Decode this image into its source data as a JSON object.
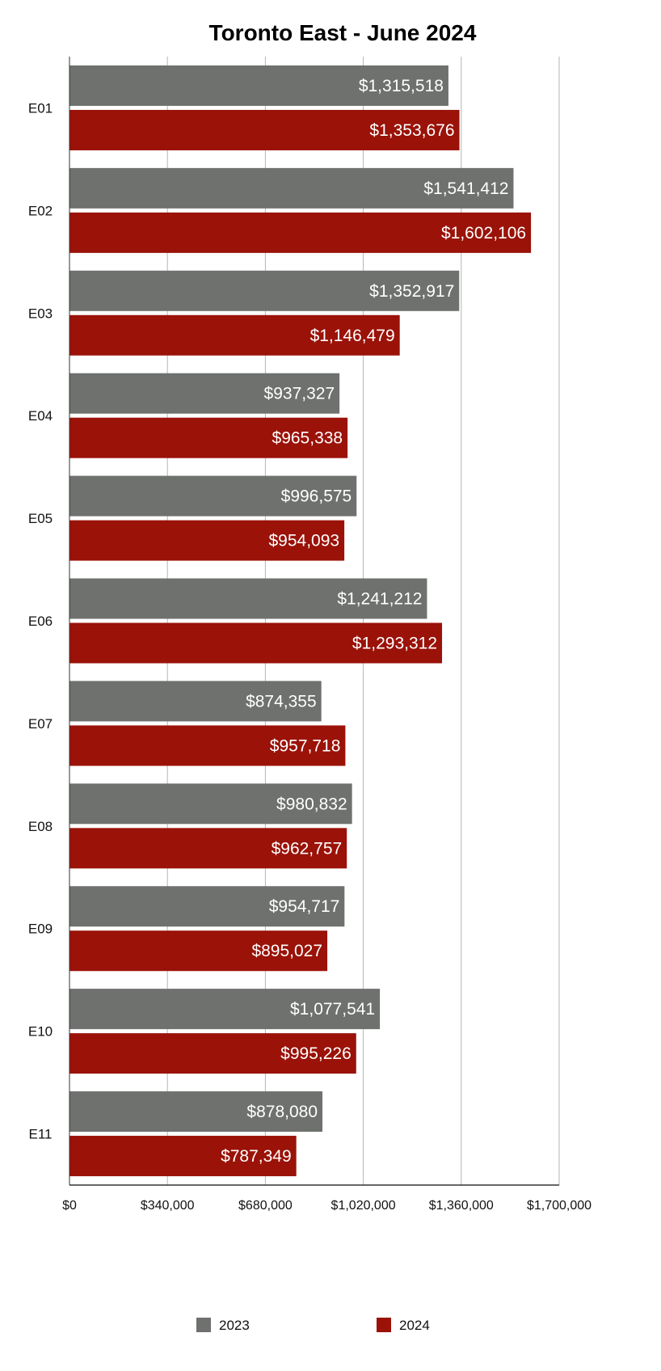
{
  "chart_data": {
    "type": "bar",
    "orientation": "horizontal",
    "title": "Toronto East - June 2024",
    "categories": [
      "E01",
      "E02",
      "E03",
      "E04",
      "E05",
      "E06",
      "E07",
      "E08",
      "E09",
      "E10",
      "E11"
    ],
    "series": [
      {
        "name": "2023",
        "color": "#6e716e",
        "values": [
          1315518,
          1541412,
          1352917,
          937327,
          996575,
          1241212,
          874355,
          980832,
          954717,
          1077541,
          878080
        ],
        "labels": [
          "$1,315,518",
          "$1,541,412",
          "$1,352,917",
          "$937,327",
          "$996,575",
          "$1,241,212",
          "$874,355",
          "$980,832",
          "$954,717",
          "$1,077,541",
          "$878,080"
        ]
      },
      {
        "name": "2024",
        "color": "#9a1208",
        "values": [
          1353676,
          1602106,
          1146479,
          965338,
          954093,
          1293312,
          957718,
          962757,
          895027,
          995226,
          787349
        ],
        "labels": [
          "$1,353,676",
          "$1,602,106",
          "$1,146,479",
          "$965,338",
          "$954,093",
          "$1,293,312",
          "$957,718",
          "$962,757",
          "$895,027",
          "$995,226",
          "$787,349"
        ]
      }
    ],
    "xlim": [
      0,
      1700000
    ],
    "xticks": [
      0,
      340000,
      680000,
      1020000,
      1360000,
      1700000
    ],
    "xtick_labels": [
      "$0",
      "$340,000",
      "$680,000",
      "$1,020,000",
      "$1,360,000",
      "$1,700,000"
    ],
    "grid": true,
    "legend_position": "bottom"
  }
}
